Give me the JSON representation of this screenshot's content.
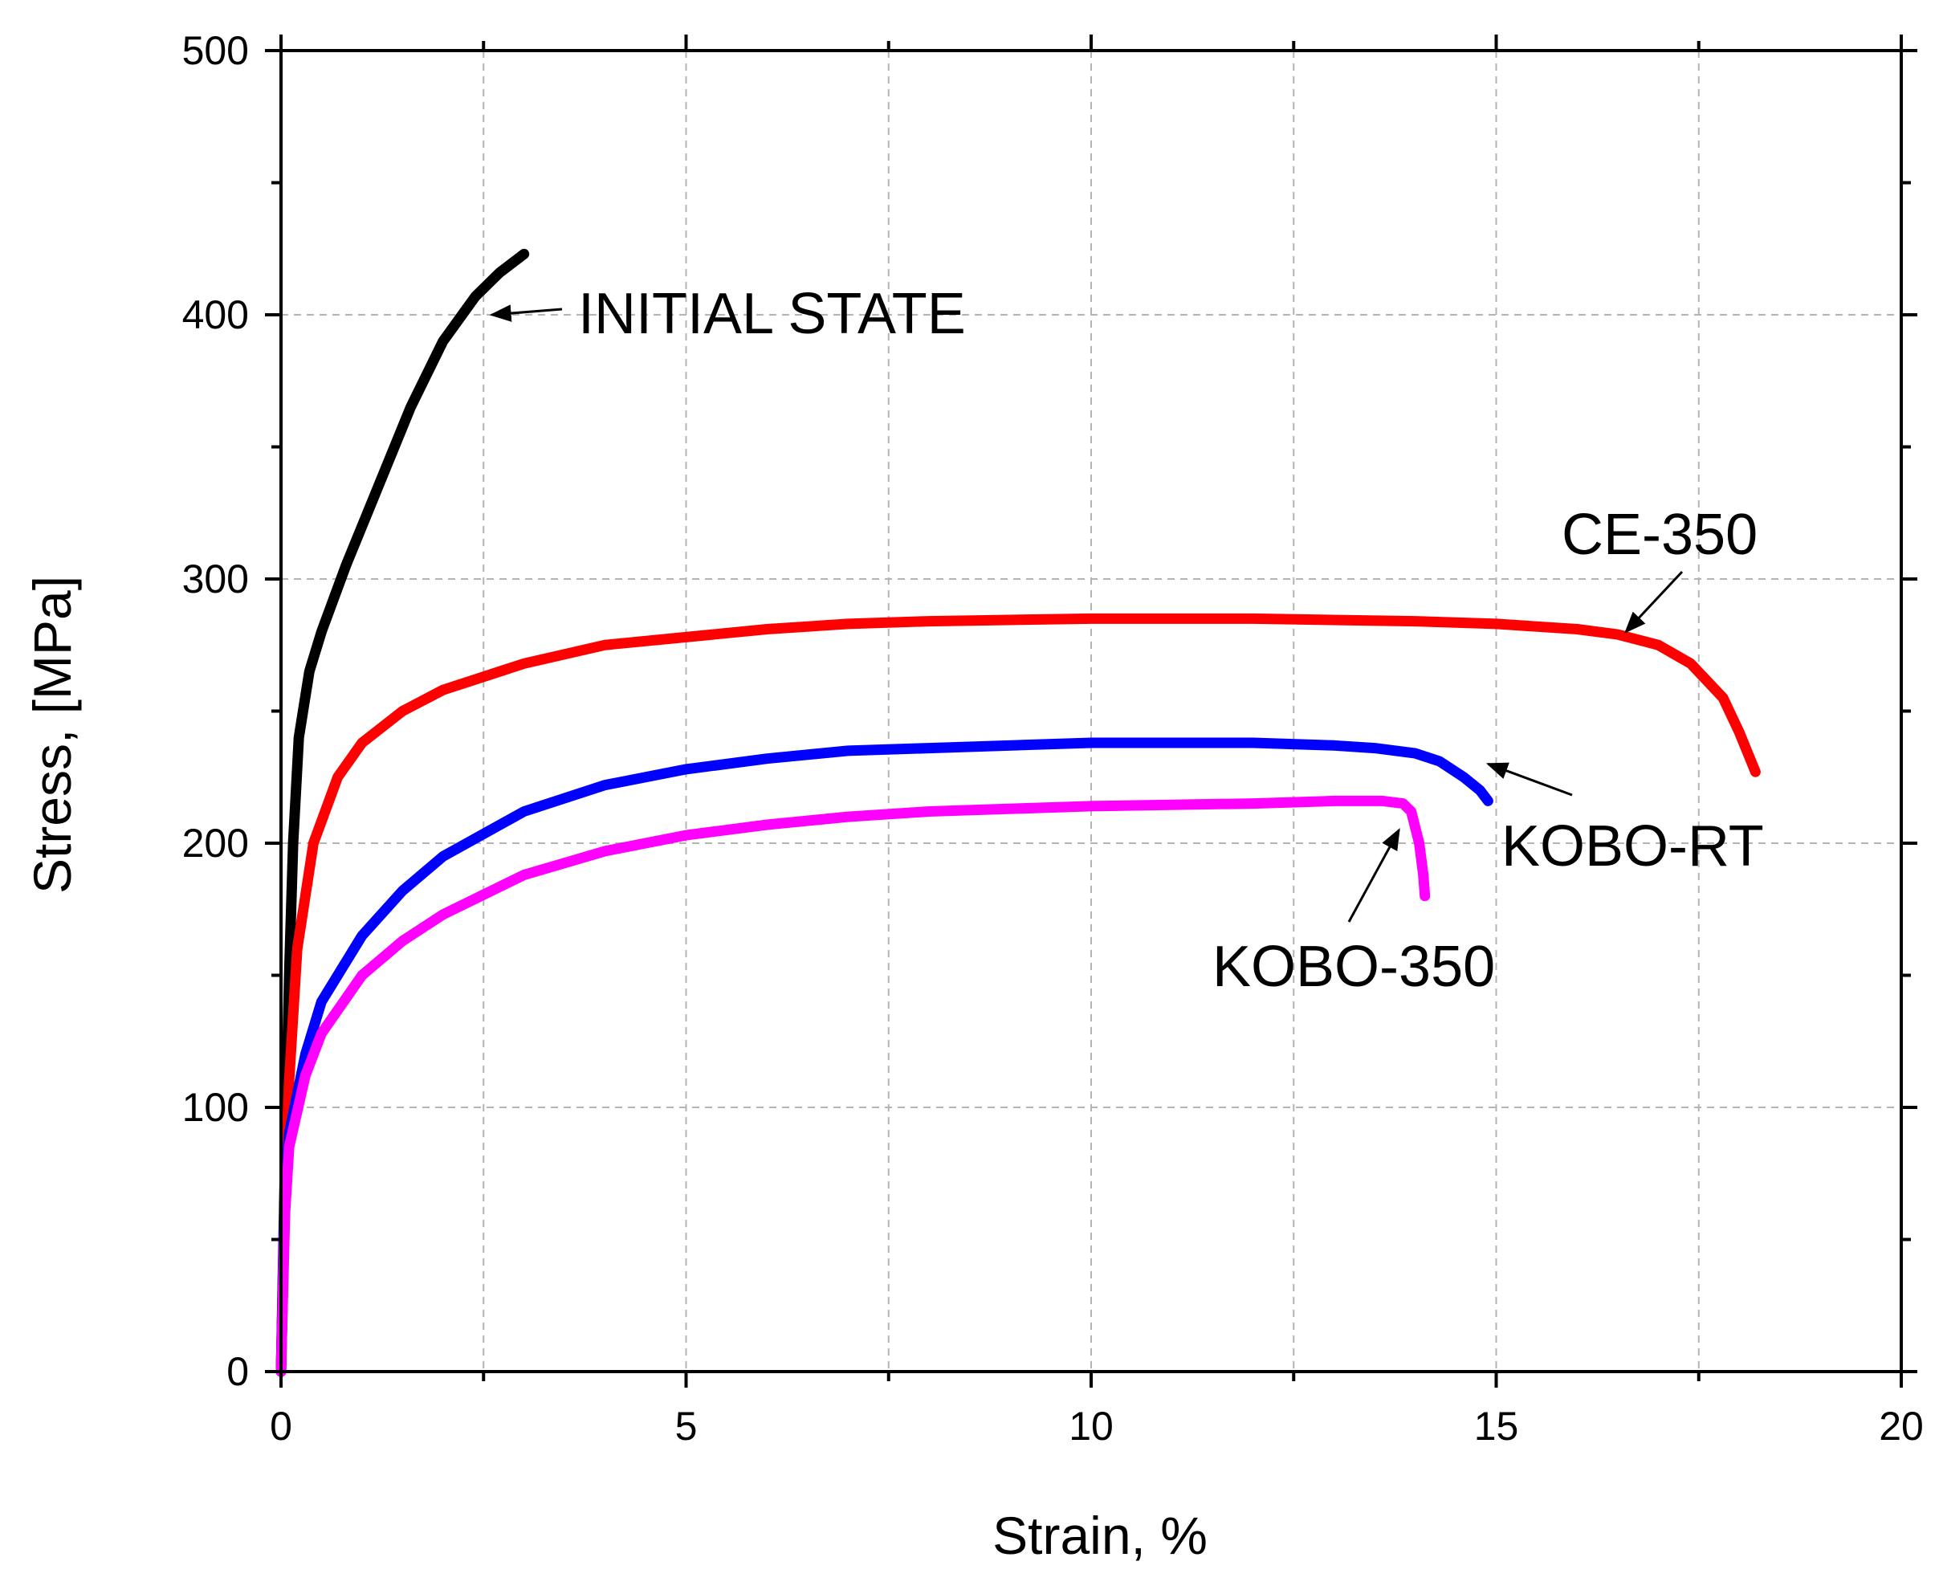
{
  "chart_data": {
    "type": "line",
    "title": "",
    "xlabel": "Strain, %",
    "ylabel": "Stress, [MPa]",
    "xlim": [
      0,
      20
    ],
    "ylim": [
      0,
      500
    ],
    "x_ticks": [
      0,
      5,
      10,
      15,
      20
    ],
    "y_ticks": [
      0,
      100,
      200,
      300,
      400,
      500
    ],
    "grid": true,
    "series": [
      {
        "name": "INITIAL STATE",
        "color": "#000000",
        "points": [
          [
            0,
            0
          ],
          [
            0.05,
            80
          ],
          [
            0.1,
            150
          ],
          [
            0.15,
            200
          ],
          [
            0.22,
            240
          ],
          [
            0.35,
            265
          ],
          [
            0.5,
            280
          ],
          [
            0.8,
            305
          ],
          [
            1.2,
            335
          ],
          [
            1.6,
            365
          ],
          [
            2.0,
            390
          ],
          [
            2.4,
            407
          ],
          [
            2.7,
            416
          ],
          [
            3.0,
            423
          ]
        ]
      },
      {
        "name": "CE-350",
        "color": "#ff0000",
        "points": [
          [
            0,
            0
          ],
          [
            0.05,
            70
          ],
          [
            0.1,
            110
          ],
          [
            0.2,
            160
          ],
          [
            0.4,
            200
          ],
          [
            0.7,
            225
          ],
          [
            1.0,
            238
          ],
          [
            1.5,
            250
          ],
          [
            2,
            258
          ],
          [
            3,
            268
          ],
          [
            4,
            275
          ],
          [
            5,
            278
          ],
          [
            6,
            281
          ],
          [
            7,
            283
          ],
          [
            8,
            284
          ],
          [
            10,
            285
          ],
          [
            12,
            285
          ],
          [
            14,
            284
          ],
          [
            15,
            283
          ],
          [
            16,
            281
          ],
          [
            16.5,
            279
          ],
          [
            17,
            275
          ],
          [
            17.4,
            268
          ],
          [
            17.8,
            255
          ],
          [
            18.0,
            242
          ],
          [
            18.2,
            227
          ]
        ]
      },
      {
        "name": "KOBO-RT",
        "color": "#0000ff",
        "points": [
          [
            0,
            0
          ],
          [
            0.05,
            70
          ],
          [
            0.1,
            90
          ],
          [
            0.3,
            120
          ],
          [
            0.5,
            140
          ],
          [
            1.0,
            165
          ],
          [
            1.5,
            182
          ],
          [
            2,
            195
          ],
          [
            3,
            212
          ],
          [
            4,
            222
          ],
          [
            5,
            228
          ],
          [
            6,
            232
          ],
          [
            7,
            235
          ],
          [
            8,
            236
          ],
          [
            10,
            238
          ],
          [
            12,
            238
          ],
          [
            13,
            237
          ],
          [
            13.5,
            236
          ],
          [
            14,
            234
          ],
          [
            14.3,
            231
          ],
          [
            14.6,
            225
          ],
          [
            14.8,
            220
          ],
          [
            14.9,
            216
          ]
        ]
      },
      {
        "name": "KOBO-350",
        "color": "#ff00ff",
        "points": [
          [
            0,
            0
          ],
          [
            0.05,
            60
          ],
          [
            0.1,
            85
          ],
          [
            0.3,
            112
          ],
          [
            0.5,
            128
          ],
          [
            1.0,
            150
          ],
          [
            1.5,
            163
          ],
          [
            2,
            173
          ],
          [
            3,
            188
          ],
          [
            4,
            197
          ],
          [
            5,
            203
          ],
          [
            6,
            207
          ],
          [
            7,
            210
          ],
          [
            8,
            212
          ],
          [
            10,
            214
          ],
          [
            12,
            215
          ],
          [
            13,
            216
          ],
          [
            13.6,
            216
          ],
          [
            13.85,
            215
          ],
          [
            13.95,
            212
          ],
          [
            14.05,
            200
          ],
          [
            14.1,
            188
          ],
          [
            14.12,
            180
          ]
        ]
      }
    ],
    "annotations": [
      {
        "text": "INITIAL STATE",
        "target": [
          2.6,
          400
        ]
      },
      {
        "text": "CE-350",
        "target": [
          16.6,
          280
        ]
      },
      {
        "text": "KOBO-RT",
        "target": [
          14.9,
          230
        ]
      },
      {
        "text": "KOBO-350",
        "target": [
          13.8,
          205
        ]
      }
    ]
  }
}
